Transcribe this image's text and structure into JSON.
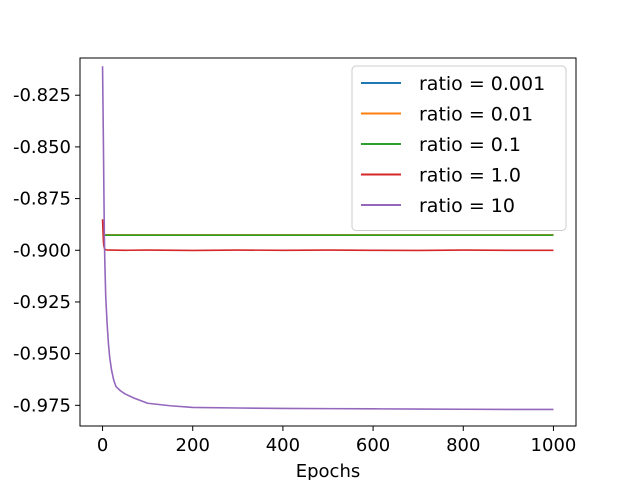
{
  "chart_data": {
    "type": "line",
    "title": "",
    "xlabel": "Epochs",
    "ylabel": "",
    "xlim": [
      -50,
      1050
    ],
    "ylim": [
      -0.985,
      -0.807
    ],
    "xticks": [
      0,
      200,
      400,
      600,
      800,
      1000
    ],
    "xtick_labels": [
      "0",
      "200",
      "400",
      "600",
      "800",
      "1000"
    ],
    "yticks": [
      -0.825,
      -0.85,
      -0.875,
      -0.9,
      -0.925,
      -0.95,
      -0.975
    ],
    "ytick_labels": [
      "-0.825",
      "-0.850",
      "-0.875",
      "-0.900",
      "-0.925",
      "-0.950",
      "-0.975"
    ],
    "grid": false,
    "legend_position": "top-right",
    "series": [
      {
        "name": "ratio = 0.001",
        "color": "#1f77b4",
        "x": [
          0,
          2,
          5,
          10,
          20,
          50,
          100,
          200,
          400,
          600,
          800,
          1000
        ],
        "y": [
          -0.8925,
          -0.8925,
          -0.8925,
          -0.8925,
          -0.8925,
          -0.8925,
          -0.8925,
          -0.8925,
          -0.8925,
          -0.8925,
          -0.8925,
          -0.8925
        ]
      },
      {
        "name": "ratio = 0.01",
        "color": "#ff7f0e",
        "x": [
          0,
          2,
          5,
          10,
          20,
          50,
          100,
          200,
          400,
          600,
          800,
          1000
        ],
        "y": [
          -0.8925,
          -0.8925,
          -0.8925,
          -0.8925,
          -0.8925,
          -0.8925,
          -0.8925,
          -0.8925,
          -0.8925,
          -0.8925,
          -0.8925,
          -0.8925
        ]
      },
      {
        "name": "ratio = 0.1",
        "color": "#2ca02c",
        "x": [
          0,
          2,
          5,
          10,
          20,
          50,
          100,
          200,
          400,
          600,
          800,
          1000
        ],
        "y": [
          -0.8927,
          -0.8927,
          -0.8927,
          -0.8927,
          -0.8927,
          -0.8927,
          -0.8927,
          -0.8927,
          -0.8927,
          -0.8927,
          -0.8927,
          -0.8927
        ]
      },
      {
        "name": "ratio = 1.0",
        "color": "#d62728",
        "x": [
          0,
          1,
          2,
          3,
          5,
          8,
          12,
          20,
          50,
          100,
          200,
          300,
          400,
          500,
          600,
          700,
          800,
          900,
          1000
        ],
        "y": [
          -0.885,
          -0.891,
          -0.896,
          -0.898,
          -0.8995,
          -0.8998,
          -0.8999,
          -0.8999,
          -0.9,
          -0.8999,
          -0.9001,
          -0.8999,
          -0.9,
          -0.8999,
          -0.9,
          -0.9001,
          -0.8999,
          -0.9,
          -0.9
        ]
      },
      {
        "name": "ratio = 10",
        "color": "#9467bd",
        "x": [
          0,
          1,
          2,
          3,
          4,
          5,
          7,
          10,
          13,
          16,
          20,
          25,
          30,
          40,
          50,
          70,
          100,
          150,
          200,
          300,
          400,
          500,
          600,
          700,
          800,
          900,
          1000
        ],
        "y": [
          -0.811,
          -0.83,
          -0.85,
          -0.872,
          -0.893,
          -0.905,
          -0.922,
          -0.935,
          -0.945,
          -0.952,
          -0.958,
          -0.963,
          -0.966,
          -0.968,
          -0.9695,
          -0.9715,
          -0.974,
          -0.9752,
          -0.976,
          -0.9763,
          -0.9765,
          -0.9766,
          -0.9767,
          -0.9768,
          -0.9769,
          -0.977,
          -0.977
        ]
      }
    ]
  }
}
